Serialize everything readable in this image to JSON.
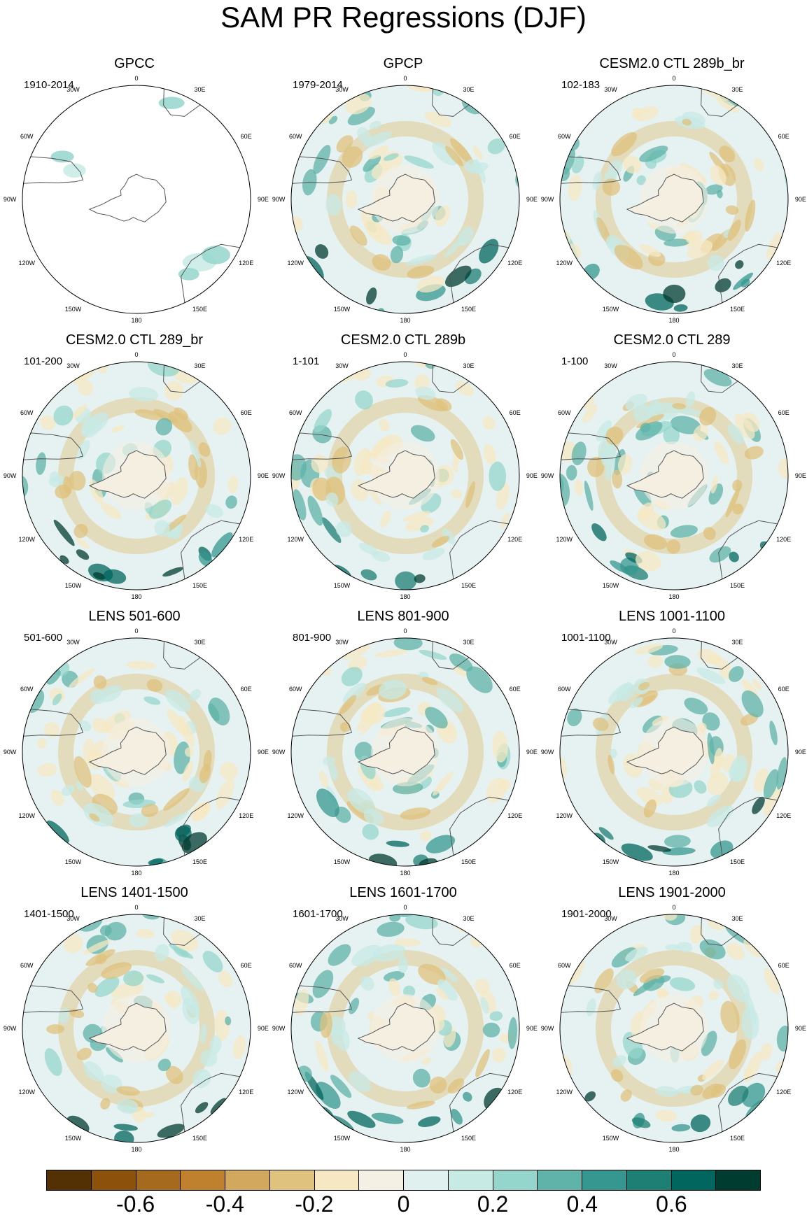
{
  "title": "SAM PR Regressions (DJF)",
  "longitude_labels": [
    "0",
    "30E",
    "60E",
    "90E",
    "120E",
    "150E",
    "180",
    "150W",
    "120W",
    "90W",
    "60W",
    "30W"
  ],
  "panels": [
    {
      "title": "GPCC",
      "period": "1910-2014",
      "coverage": "land-only"
    },
    {
      "title": "GPCP",
      "period": "1979-2014",
      "coverage": "global"
    },
    {
      "title": "CESM2.0 CTL 289b_br",
      "period": "102-183",
      "coverage": "global"
    },
    {
      "title": "CESM2.0 CTL 289_br",
      "period": "101-200",
      "coverage": "global"
    },
    {
      "title": "CESM2.0 CTL 289b",
      "period": "1-101",
      "coverage": "global"
    },
    {
      "title": "CESM2.0 CTL 289",
      "period": "1-100",
      "coverage": "global"
    },
    {
      "title": "LENS 501-600",
      "period": "501-600",
      "coverage": "global"
    },
    {
      "title": "LENS 801-900",
      "period": "801-900",
      "coverage": "global"
    },
    {
      "title": "LENS 1001-1100",
      "period": "1001-1100",
      "coverage": "global"
    },
    {
      "title": "LENS 1401-1500",
      "period": "1401-1500",
      "coverage": "global"
    },
    {
      "title": "LENS 1601-1700",
      "period": "1601-1700",
      "coverage": "global"
    },
    {
      "title": "LENS 1901-2000",
      "period": "1901-2000",
      "coverage": "global"
    }
  ],
  "colorbar": {
    "colors": [
      "#543005",
      "#8c510a",
      "#a66a1e",
      "#bf812d",
      "#d2a85e",
      "#dfc27d",
      "#f6e8c3",
      "#f5f0e4",
      "#e0f0ef",
      "#c7eae5",
      "#94d6cb",
      "#5fb3a8",
      "#35978f",
      "#1e7f74",
      "#01665e",
      "#003c30"
    ],
    "tick_labels": [
      "-0.6",
      "-0.4",
      "-0.2",
      "0",
      "0.2",
      "0.4",
      "0.6"
    ]
  },
  "map_style": {
    "ocean_fill": "#e6f2f1",
    "neutral_fill": "#f5efe2",
    "land_outline": "#555555",
    "circle_outline": "#000000"
  }
}
